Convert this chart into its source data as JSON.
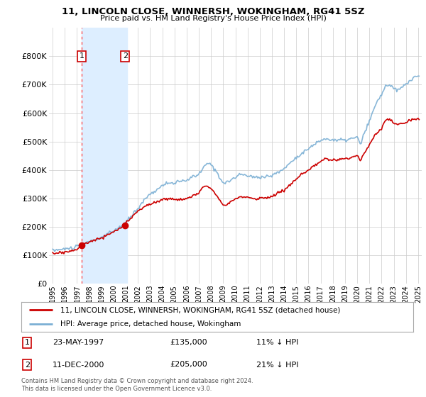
{
  "title": "11, LINCOLN CLOSE, WINNERSH, WOKINGHAM, RG41 5SZ",
  "subtitle": "Price paid vs. HM Land Registry's House Price Index (HPI)",
  "legend_property": "11, LINCOLN CLOSE, WINNERSH, WOKINGHAM, RG41 5SZ (detached house)",
  "legend_hpi": "HPI: Average price, detached house, Wokingham",
  "footer": "Contains HM Land Registry data © Crown copyright and database right 2024.\nThis data is licensed under the Open Government Licence v3.0.",
  "point1_date": "23-MAY-1997",
  "point1_price": "£135,000",
  "point1_hpi": "11% ↓ HPI",
  "point1_year": 1997.38,
  "point1_value": 135000,
  "point2_date": "11-DEC-2000",
  "point2_price": "£205,000",
  "point2_hpi": "21% ↓ HPI",
  "point2_year": 2000.95,
  "point2_value": 205000,
  "shade_x1": 1997.38,
  "shade_x2": 2001.1,
  "ylim": [
    0,
    900000
  ],
  "xlim_left": 1994.7,
  "xlim_right": 2025.3,
  "property_color": "#cc0000",
  "hpi_color": "#7bafd4",
  "shade_color": "#ddeeff",
  "vline_color": "#ff4444",
  "yticks": [
    0,
    100000,
    200000,
    300000,
    400000,
    500000,
    600000,
    700000,
    800000
  ],
  "xtick_years": [
    1995,
    1996,
    1997,
    1998,
    1999,
    2000,
    2001,
    2002,
    2003,
    2004,
    2005,
    2006,
    2007,
    2008,
    2009,
    2010,
    2011,
    2012,
    2013,
    2014,
    2015,
    2016,
    2017,
    2018,
    2019,
    2020,
    2021,
    2022,
    2023,
    2024,
    2025
  ]
}
